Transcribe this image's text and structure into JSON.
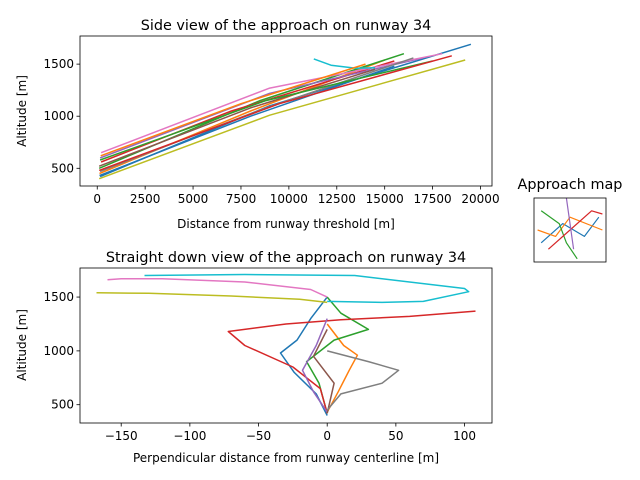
{
  "colors": [
    "#1f77b4",
    "#ff7f0e",
    "#2ca02c",
    "#d62728",
    "#9467bd",
    "#8c564b",
    "#e377c2",
    "#7f7f7f",
    "#bcbd22",
    "#17becf"
  ],
  "chart_data": [
    {
      "type": "line",
      "title": "Side view of the approach on runway 34",
      "xlabel": "Distance from runway threshold [m]",
      "ylabel": "Altitude [m]",
      "xlim": [
        -900,
        20600
      ],
      "ylim": [
        330,
        1770
      ],
      "xticks": [
        0,
        2500,
        5000,
        7500,
        10000,
        12500,
        15000,
        17500,
        20000
      ],
      "yticks": [
        500,
        1000,
        1500
      ],
      "series": [
        {
          "x": [
            150,
            9000,
            19500
          ],
          "y": [
            420,
            1100,
            1690
          ]
        },
        {
          "x": [
            120,
            8000,
            15000
          ],
          "y": [
            450,
            1050,
            1540
          ]
        },
        {
          "x": [
            100,
            8500,
            16000
          ],
          "y": [
            500,
            1150,
            1600
          ]
        },
        {
          "x": [
            200,
            7000,
            15500
          ],
          "y": [
            560,
            1050,
            1530
          ]
        },
        {
          "x": [
            150,
            9000,
            17000
          ],
          "y": [
            600,
            1220,
            1560
          ]
        },
        {
          "x": [
            100,
            8000,
            14500
          ],
          "y": [
            520,
            1080,
            1450
          ]
        },
        {
          "x": [
            200,
            9000,
            18000
          ],
          "y": [
            650,
            1270,
            1600
          ]
        },
        {
          "x": [
            150,
            8500,
            16500
          ],
          "y": [
            470,
            1060,
            1560
          ]
        },
        {
          "x": [
            100,
            9000,
            19200
          ],
          "y": [
            400,
            1010,
            1540
          ]
        },
        {
          "x": [
            11300,
            12200,
            13500,
            14500
          ],
          "y": [
            1550,
            1490,
            1460,
            1465
          ]
        },
        {
          "x": [
            120,
            8000,
            15500
          ],
          "y": [
            430,
            1000,
            1480
          ]
        },
        {
          "x": [
            180,
            7500,
            14000
          ],
          "y": [
            620,
            1120,
            1500
          ]
        },
        {
          "x": [
            150,
            8800,
            17500
          ],
          "y": [
            580,
            1150,
            1530
          ]
        },
        {
          "x": [
            100,
            9500,
            18500
          ],
          "y": [
            480,
            1120,
            1580
          ]
        }
      ]
    },
    {
      "type": "line",
      "title": "Straight down view of the approach on runway 34",
      "xlabel": "Perpendicular distance from runway centerline [m]",
      "ylabel": "Altitude [m]",
      "xlim": [
        -180,
        120
      ],
      "ylim": [
        330,
        1770
      ],
      "xticks": [
        -150,
        -100,
        -50,
        0,
        50,
        100
      ],
      "yticks": [
        500,
        1000,
        1500
      ],
      "series": [
        {
          "x": [
            0,
            -8,
            -24,
            -34,
            -22,
            -12,
            0
          ],
          "y": [
            400,
            600,
            800,
            980,
            1100,
            1300,
            1500
          ]
        },
        {
          "x": [
            0,
            8,
            16,
            22,
            12,
            0
          ],
          "y": [
            430,
            620,
            820,
            960,
            1050,
            1250
          ]
        },
        {
          "x": [
            0,
            -6,
            -15,
            5,
            30,
            10,
            0
          ],
          "y": [
            420,
            700,
            900,
            1100,
            1200,
            1350,
            1500
          ]
        },
        {
          "x": [
            0,
            -5,
            -25,
            -60,
            -72,
            -30,
            10,
            60,
            108
          ],
          "y": [
            420,
            650,
            850,
            1050,
            1180,
            1250,
            1290,
            1320,
            1370
          ]
        },
        {
          "x": [
            0,
            -10,
            -18,
            -8,
            0
          ],
          "y": [
            430,
            620,
            820,
            1050,
            1300
          ]
        },
        {
          "x": [
            0,
            5,
            -10,
            0
          ],
          "y": [
            420,
            700,
            950,
            1200
          ]
        },
        {
          "x": [
            0,
            -12,
            -60,
            -120,
            -150,
            -160
          ],
          "y": [
            1500,
            1570,
            1640,
            1670,
            1670,
            1660
          ]
        },
        {
          "x": [
            0,
            10,
            40,
            52,
            30,
            0
          ],
          "y": [
            450,
            600,
            700,
            820,
            900,
            1000
          ]
        },
        {
          "x": [
            0,
            -20,
            -70,
            -130,
            -168
          ],
          "y": [
            1450,
            1480,
            1510,
            1535,
            1540
          ]
        },
        {
          "x": [
            -133,
            -60,
            20,
            100,
            103,
            70,
            40,
            0
          ],
          "y": [
            1700,
            1710,
            1700,
            1580,
            1550,
            1460,
            1450,
            1460
          ]
        }
      ]
    },
    {
      "type": "line",
      "title": "Approach map",
      "series": [
        {
          "x": [
            0.1,
            0.4,
            0.7,
            0.9
          ],
          "y": [
            0.3,
            0.6,
            0.4,
            0.7
          ]
        },
        {
          "x": [
            0.05,
            0.3,
            0.5,
            0.95
          ],
          "y": [
            0.5,
            0.4,
            0.7,
            0.5
          ]
        },
        {
          "x": [
            0.1,
            0.35,
            0.45,
            0.6
          ],
          "y": [
            0.8,
            0.6,
            0.3,
            0.05
          ]
        },
        {
          "x": [
            0.2,
            0.5,
            0.8,
            0.95
          ],
          "y": [
            0.2,
            0.5,
            0.8,
            0.75
          ]
        },
        {
          "x": [
            0.45,
            0.5,
            0.55
          ],
          "y": [
            1.0,
            0.6,
            0.2
          ]
        }
      ]
    }
  ]
}
